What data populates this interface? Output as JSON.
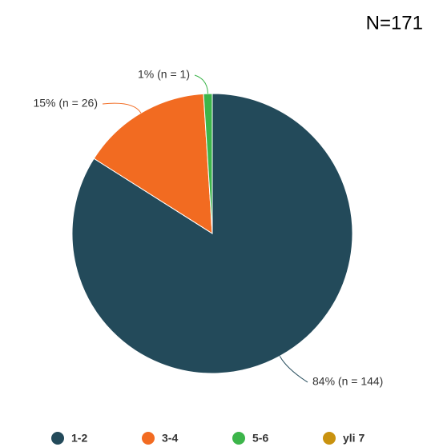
{
  "chart_data": {
    "type": "pie",
    "title": "N=171",
    "categories": [
      "1-2",
      "3-4",
      "5-6",
      "yli 7"
    ],
    "values": [
      84,
      15,
      1,
      0
    ],
    "value_labels": [
      "84% (n = 144)",
      "15% (n = 26)",
      "1% (n = 1)",
      null
    ],
    "colors": [
      "#234a5a",
      "#f26b21",
      "#3cb54a",
      "#c9920f"
    ],
    "legend": "bottom"
  }
}
